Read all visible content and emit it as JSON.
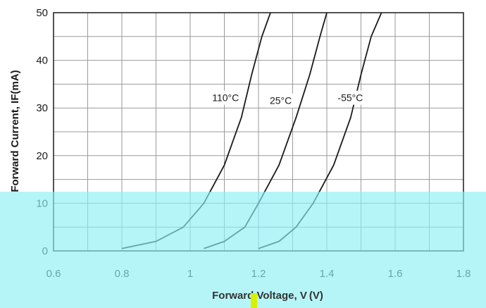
{
  "chart_data": {
    "type": "line",
    "xlabel": "Forward Voltage, V (V)",
    "ylabel": "Forward Current, IF(mA)",
    "xlim": [
      0.6,
      1.8
    ],
    "ylim": [
      0,
      50
    ],
    "xticks": [
      "0.6",
      "0.8",
      "1",
      "1.2",
      "1.4",
      "1.6",
      "1.8"
    ],
    "yticks": [
      "0",
      "10",
      "20",
      "30",
      "40",
      "50"
    ],
    "grid": true,
    "series": [
      {
        "name": "110°C",
        "x": [
          0.8,
          0.9,
          0.98,
          1.04,
          1.1,
          1.15,
          1.18,
          1.21,
          1.235
        ],
        "y": [
          0.5,
          2,
          5,
          10,
          18,
          28,
          37,
          45,
          50
        ]
      },
      {
        "name": "25°C",
        "x": [
          1.04,
          1.1,
          1.16,
          1.2,
          1.26,
          1.31,
          1.35,
          1.38,
          1.4
        ],
        "y": [
          0.5,
          2,
          5,
          10,
          18,
          28,
          37,
          45,
          50
        ]
      },
      {
        "name": "-55°C",
        "x": [
          1.2,
          1.26,
          1.31,
          1.36,
          1.42,
          1.47,
          1.5,
          1.53,
          1.56
        ],
        "y": [
          0.5,
          2,
          5,
          10,
          18,
          28,
          37,
          45,
          50
        ]
      }
    ],
    "overlay_color": "#8ef0f4",
    "line_color": "#1a1a1a"
  }
}
